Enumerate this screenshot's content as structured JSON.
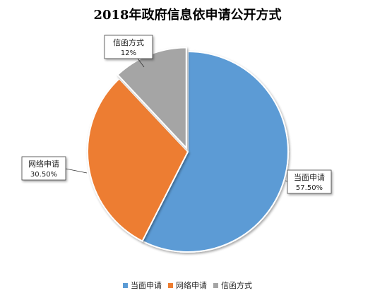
{
  "chart_data": {
    "type": "pie",
    "title": "2018年政府信息依申请公开方式",
    "categories": [
      "当面申请",
      "网络申请",
      "信函方式"
    ],
    "values": [
      57.5,
      30.5,
      12
    ],
    "data_labels": [
      "57.50%",
      "30.50%",
      "12%"
    ],
    "colors": [
      "#5b9bd5",
      "#ed7d31",
      "#a5a5a5"
    ],
    "legend_position": "bottom"
  }
}
